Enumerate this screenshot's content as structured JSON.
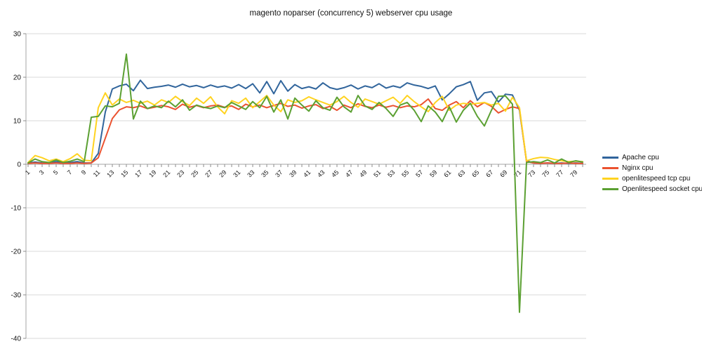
{
  "title": "magento noparser (concurrency 5) webserver cpu usage",
  "colors": {
    "background": "#FFFFFF",
    "grid": "#D9D9D9",
    "axis": "#A6A6A6",
    "tick": "#8C8C8C",
    "text": "#111111"
  },
  "chart_data": {
    "type": "line",
    "title": "magento noparser (concurrency 5) webserver cpu usage",
    "xlabel": "",
    "ylabel": "",
    "ylim": [
      -40,
      30
    ],
    "y_ticks": [
      30,
      20,
      10,
      0,
      -10,
      -20,
      -30,
      -40
    ],
    "grid": true,
    "legend_position": "right",
    "x": [
      1,
      2,
      3,
      4,
      5,
      6,
      7,
      8,
      9,
      10,
      11,
      12,
      13,
      14,
      15,
      16,
      17,
      18,
      19,
      20,
      21,
      22,
      23,
      24,
      25,
      26,
      27,
      28,
      29,
      30,
      31,
      32,
      33,
      34,
      35,
      36,
      37,
      38,
      39,
      40,
      41,
      42,
      43,
      44,
      45,
      46,
      47,
      48,
      49,
      50,
      51,
      52,
      53,
      54,
      55,
      56,
      57,
      58,
      59,
      60,
      61,
      62,
      63,
      64,
      65,
      66,
      67,
      68,
      69,
      70,
      71,
      72,
      73,
      74,
      75,
      76,
      77,
      78,
      79,
      80
    ],
    "x_tick_labels": [
      1,
      3,
      5,
      7,
      9,
      11,
      13,
      15,
      17,
      19,
      21,
      23,
      25,
      27,
      29,
      31,
      33,
      35,
      37,
      39,
      41,
      43,
      45,
      47,
      49,
      51,
      53,
      55,
      57,
      59,
      61,
      63,
      65,
      67,
      69,
      71,
      73,
      75,
      77,
      79
    ],
    "series": [
      {
        "name": "Apache cpu",
        "color": "#31659C",
        "values": [
          0.3,
          0.5,
          0.3,
          0.2,
          0.6,
          0.3,
          0.4,
          0.6,
          0.3,
          0.3,
          2.5,
          12.0,
          17.3,
          18.0,
          18.4,
          16.9,
          19.3,
          17.4,
          17.7,
          17.9,
          18.2,
          17.7,
          18.4,
          17.8,
          18.1,
          17.6,
          18.2,
          17.7,
          18.0,
          17.5,
          18.3,
          17.4,
          18.5,
          16.4,
          19.0,
          16.2,
          19.2,
          16.8,
          18.3,
          17.4,
          17.8,
          17.3,
          18.7,
          17.6,
          17.2,
          17.6,
          18.2,
          17.3,
          18.0,
          17.6,
          18.5,
          17.5,
          18.0,
          17.6,
          18.7,
          18.2,
          17.9,
          17.4,
          18.0,
          14.8,
          16.2,
          17.8,
          18.3,
          19.0,
          14.7,
          16.4,
          16.7,
          14.3,
          16.1,
          15.9,
          12.4,
          0.8,
          0.3,
          0.2,
          0.3,
          0.2,
          0.3,
          0.2,
          0.3,
          0.2
        ]
      },
      {
        "name": "Nginx cpu",
        "color": "#EB5230",
        "values": [
          0.2,
          0.3,
          0.2,
          0.2,
          0.3,
          0.2,
          0.2,
          0.3,
          0.2,
          0.3,
          1.5,
          6.0,
          10.5,
          12.5,
          13.2,
          13.0,
          13.4,
          12.8,
          13.1,
          13.5,
          13.2,
          12.6,
          13.8,
          13.1,
          13.5,
          13.0,
          13.4,
          13.6,
          13.1,
          13.4,
          12.6,
          13.8,
          13.2,
          13.6,
          13.0,
          13.5,
          14.0,
          13.3,
          13.6,
          12.9,
          13.4,
          13.7,
          12.8,
          13.3,
          12.4,
          13.6,
          13.0,
          13.9,
          13.3,
          13.0,
          13.6,
          13.1,
          13.5,
          13.0,
          13.4,
          13.2,
          13.7,
          15.0,
          12.8,
          12.4,
          13.6,
          14.4,
          13.0,
          14.6,
          13.2,
          14.2,
          13.3,
          11.8,
          12.6,
          13.2,
          12.8,
          0.6,
          0.3,
          0.2,
          0.3,
          0.2,
          0.2,
          0.3,
          0.2,
          0.2
        ]
      },
      {
        "name": "openlitespeed tcp cpu",
        "color": "#FFD320",
        "values": [
          0.4,
          2.0,
          1.5,
          0.8,
          1.2,
          0.6,
          1.3,
          2.4,
          0.9,
          0.8,
          13.0,
          16.4,
          13.6,
          15.0,
          14.2,
          14.7,
          14.0,
          14.5,
          13.6,
          14.8,
          14.2,
          15.6,
          14.4,
          13.5,
          15.2,
          14.0,
          15.5,
          13.2,
          11.6,
          14.6,
          14.0,
          15.2,
          13.0,
          14.4,
          15.8,
          13.6,
          12.1,
          14.8,
          14.2,
          14.6,
          15.5,
          14.8,
          14.2,
          13.6,
          14.4,
          15.6,
          14.2,
          13.1,
          15.0,
          14.4,
          13.8,
          14.6,
          15.4,
          14.0,
          15.8,
          14.4,
          13.2,
          12.1,
          14.2,
          15.6,
          12.4,
          13.6,
          14.0,
          13.8,
          14.0,
          14.2,
          13.6,
          14.0,
          12.2,
          15.4,
          13.0,
          0.8,
          1.3,
          1.6,
          1.5,
          1.1,
          0.8,
          0.6,
          0.7,
          0.6
        ]
      },
      {
        "name": "Openlitespeed socket cpu",
        "color": "#5BA032",
        "values": [
          0.3,
          1.2,
          0.6,
          0.4,
          1.0,
          0.4,
          0.7,
          1.2,
          0.6,
          10.8,
          11.0,
          13.4,
          13.2,
          14.0,
          25.3,
          10.4,
          14.5,
          12.8,
          13.4,
          13.0,
          14.5,
          13.2,
          14.8,
          12.4,
          13.6,
          13.1,
          12.8,
          13.4,
          13.0,
          14.2,
          13.4,
          12.6,
          14.4,
          13.0,
          15.6,
          12.0,
          14.8,
          10.4,
          15.2,
          13.6,
          12.2,
          14.6,
          13.0,
          12.4,
          15.4,
          13.2,
          12.0,
          15.8,
          13.4,
          12.6,
          14.2,
          12.8,
          11.0,
          13.6,
          14.2,
          12.4,
          9.8,
          13.4,
          12.0,
          9.8,
          13.2,
          9.7,
          12.4,
          14.0,
          11.0,
          8.8,
          12.4,
          15.6,
          15.7,
          13.8,
          -34.0,
          0.4,
          0.6,
          0.4,
          1.0,
          0.3,
          1.2,
          0.4,
          0.8,
          0.5
        ]
      }
    ]
  }
}
